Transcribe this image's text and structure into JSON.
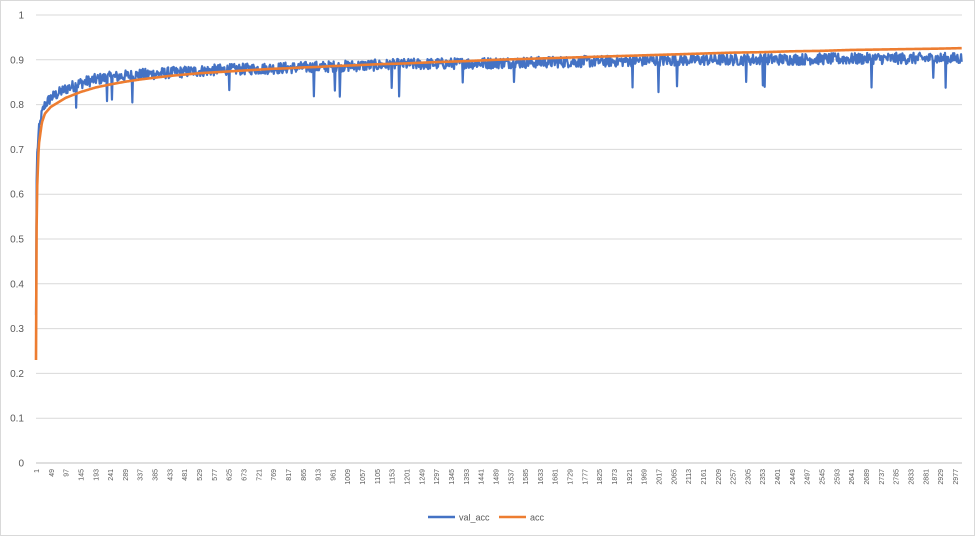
{
  "chart_data": {
    "type": "line",
    "title": "",
    "xlabel": "",
    "ylabel": "",
    "ylim": [
      0,
      1
    ],
    "yticks": [
      "0",
      "0.1",
      "0.2",
      "0.3",
      "0.4",
      "0.5",
      "0.6",
      "0.7",
      "0.8",
      "0.9",
      "1"
    ],
    "xlim": [
      1,
      3000
    ],
    "xticks": [
      "1",
      "49",
      "97",
      "145",
      "193",
      "241",
      "289",
      "337",
      "385",
      "433",
      "481",
      "529",
      "577",
      "625",
      "673",
      "721",
      "769",
      "817",
      "865",
      "913",
      "961",
      "1009",
      "1057",
      "1105",
      "1153",
      "1201",
      "1249",
      "1297",
      "1345",
      "1393",
      "1441",
      "1489",
      "1537",
      "1585",
      "1633",
      "1681",
      "1729",
      "1777",
      "1825",
      "1873",
      "1921",
      "1969",
      "2017",
      "2065",
      "2113",
      "2161",
      "2209",
      "2257",
      "2305",
      "2353",
      "2401",
      "2449",
      "2497",
      "2545",
      "2593",
      "2641",
      "2689",
      "2737",
      "2785",
      "2833",
      "2881",
      "2929",
      "2977"
    ],
    "legend_position": "bottom",
    "series": [
      {
        "name": "val_acc",
        "color": "#4472c4",
        "x": [
          1,
          2,
          5,
          10,
          20,
          30,
          49,
          97,
          145,
          193,
          241,
          289,
          337,
          385,
          433,
          481,
          529,
          577,
          625,
          673,
          721,
          769,
          817,
          865,
          913,
          961,
          1009,
          1105,
          1201,
          1297,
          1393,
          1489,
          1585,
          1681,
          1777,
          1873,
          1969,
          2065,
          2161,
          2257,
          2353,
          2449,
          2545,
          2641,
          2737,
          2833,
          2929,
          3000
        ],
        "y": [
          0.33,
          0.6,
          0.69,
          0.74,
          0.78,
          0.8,
          0.815,
          0.835,
          0.848,
          0.856,
          0.861,
          0.864,
          0.867,
          0.869,
          0.871,
          0.873,
          0.875,
          0.877,
          0.878,
          0.879,
          0.88,
          0.881,
          0.882,
          0.883,
          0.884,
          0.885,
          0.886,
          0.888,
          0.89,
          0.891,
          0.892,
          0.893,
          0.894,
          0.895,
          0.896,
          0.897,
          0.898,
          0.899,
          0.9,
          0.9,
          0.901,
          0.901,
          0.902,
          0.902,
          0.903,
          0.903,
          0.903,
          0.903
        ],
        "noise": 0.008
      },
      {
        "name": "acc",
        "color": "#ed7d31",
        "x": [
          1,
          2,
          5,
          10,
          20,
          30,
          49,
          97,
          145,
          193,
          241,
          289,
          337,
          385,
          433,
          481,
          529,
          577,
          625,
          673,
          721,
          769,
          817,
          865,
          913,
          961,
          1009,
          1105,
          1201,
          1297,
          1393,
          1489,
          1585,
          1681,
          1777,
          1873,
          1969,
          2065,
          2161,
          2257,
          2353,
          2449,
          2545,
          2641,
          2737,
          2833,
          2929,
          3000
        ],
        "y": [
          0.23,
          0.48,
          0.62,
          0.71,
          0.76,
          0.78,
          0.795,
          0.815,
          0.828,
          0.838,
          0.845,
          0.851,
          0.856,
          0.86,
          0.864,
          0.867,
          0.87,
          0.872,
          0.874,
          0.876,
          0.878,
          0.88,
          0.881,
          0.883,
          0.884,
          0.886,
          0.887,
          0.89,
          0.892,
          0.895,
          0.897,
          0.9,
          0.902,
          0.904,
          0.906,
          0.908,
          0.91,
          0.912,
          0.914,
          0.916,
          0.917,
          0.919,
          0.92,
          0.922,
          0.923,
          0.924,
          0.925,
          0.926
        ],
        "noise": 0.0
      }
    ]
  }
}
